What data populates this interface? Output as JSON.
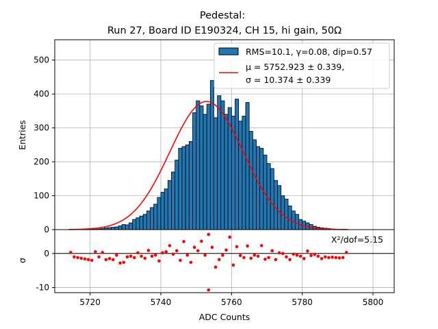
{
  "chart_data": [
    {
      "type": "bar",
      "title_line1": "Pedestal:",
      "title_line2": "Run 27, Board ID E190324, CH 15, hi gain, 50Ω",
      "xlabel": "",
      "ylabel": "Entries",
      "xlim": [
        5710,
        5806
      ],
      "ylim": [
        0,
        560
      ],
      "yticks": [
        0,
        100,
        200,
        300,
        400,
        500
      ],
      "xticks": [
        5720,
        5740,
        5760,
        5780,
        5800
      ],
      "grid": true,
      "legend": "top-right",
      "hist_series_name": "RMS=10.1, γ=0.08, dip=0.57",
      "fit_series_name_line1": "μ = 5752.923 ± 0.339,",
      "fit_series_name_line2": "σ = 10.374 ± 0.339",
      "bin_start": 5714,
      "bin_width": 1,
      "fit": {
        "mu": 5752.923,
        "sigma": 10.374,
        "amplitude": 378,
        "range": [
          5714,
          5793
        ]
      },
      "hist_values": [
        0,
        0,
        0,
        0,
        1,
        1,
        1,
        1,
        2,
        3,
        5,
        6,
        7,
        8,
        11,
        15,
        14,
        20,
        30,
        35,
        40,
        45,
        55,
        65,
        75,
        95,
        110,
        120,
        145,
        170,
        205,
        240,
        245,
        250,
        260,
        345,
        380,
        365,
        340,
        370,
        440,
        330,
        395,
        380,
        340,
        360,
        335,
        385,
        320,
        335,
        375,
        290,
        265,
        245,
        240,
        220,
        195,
        180,
        145,
        130,
        100,
        90,
        70,
        55,
        45,
        30,
        25,
        20,
        15,
        10,
        7,
        5,
        4,
        3,
        2,
        1,
        1,
        1,
        0
      ],
      "colors": {
        "bar": "#1f77b4",
        "bar_edge": "#000000",
        "fit": "#ff0000",
        "grid": "#b0b0b0"
      }
    },
    {
      "type": "scatter",
      "xlabel": "ADC Counts",
      "ylabel": "σ",
      "xlim": [
        5710,
        5806
      ],
      "ylim": [
        -11.5,
        7
      ],
      "yticks": [
        -10,
        0
      ],
      "xticks": [
        5720,
        5740,
        5760,
        5780,
        5800
      ],
      "annotation": "X²/dof=5.15",
      "residual_x": [
        5714,
        5715,
        5716,
        5717,
        5718,
        5719,
        5720,
        5721,
        5722,
        5723,
        5724,
        5725,
        5726,
        5727,
        5728,
        5729,
        5730,
        5731,
        5732,
        5733,
        5734,
        5735,
        5736,
        5737,
        5738,
        5739,
        5740,
        5741,
        5742,
        5743,
        5744,
        5745,
        5746,
        5747,
        5748,
        5749,
        5750,
        5751,
        5752,
        5753,
        5754,
        5755,
        5756,
        5757,
        5758,
        5759,
        5760,
        5761,
        5762,
        5763,
        5764,
        5765,
        5766,
        5767,
        5768,
        5769,
        5770,
        5771,
        5772,
        5773,
        5774,
        5775,
        5776,
        5777,
        5778,
        5779,
        5780,
        5781,
        5782,
        5783,
        5784,
        5785,
        5786,
        5787,
        5788,
        5789,
        5790,
        5791,
        5792
      ],
      "residual_values": [
        0.3,
        -1.0,
        -1.2,
        -1.4,
        -1.6,
        -1.8,
        -2.0,
        0.5,
        -1.0,
        0.3,
        -1.8,
        -1.5,
        -1.8,
        -0.5,
        -2.8,
        -2.6,
        -1.0,
        -0.8,
        -1.2,
        0.2,
        -0.8,
        -1.4,
        0.9,
        -0.8,
        -0.5,
        -2.2,
        0.2,
        0.5,
        2.3,
        -0.2,
        0.8,
        -2.0,
        3.5,
        -0.5,
        -2.6,
        1.8,
        0.8,
        3.6,
        -0.5,
        5.6,
        1.8,
        -4.0,
        -1.8,
        -0.5,
        1.0,
        4.8,
        -3.4,
        2.0,
        -0.6,
        -1.2,
        2.2,
        -1.4,
        -0.5,
        -0.8,
        2.3,
        -1.7,
        -1.2,
        0.8,
        -1.8,
        0.2,
        0.0,
        -1.0,
        -1.8,
        -0.2,
        -0.5,
        -0.8,
        -1.5,
        0.7,
        -0.6,
        -0.3,
        -0.8,
        -1.5,
        -1.0,
        -1.2,
        -1.1,
        -1.2,
        -1.3,
        -1.2,
        0.3
      ],
      "outlier": {
        "x": 5753,
        "y": -10.7
      },
      "colors": {
        "point": "#ff0000",
        "zero_line": "#000000"
      }
    }
  ]
}
